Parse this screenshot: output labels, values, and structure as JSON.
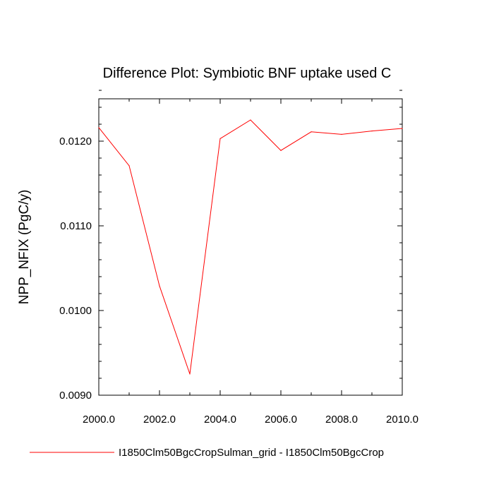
{
  "chart_data": {
    "type": "line",
    "title": "Difference Plot: Symbiotic BNF uptake used C",
    "xlabel": "",
    "ylabel": "NPP_NFIX  (PgC/y)",
    "xlim": [
      2000,
      2010
    ],
    "ylim": [
      0.009,
      0.0125
    ],
    "x_ticks": [
      2000,
      2002,
      2004,
      2006,
      2008,
      2010
    ],
    "x_tick_labels": [
      "2000.0",
      "2002.0",
      "2004.0",
      "2006.0",
      "2008.0",
      "2010.0"
    ],
    "x_minor_step": 1,
    "y_ticks": [
      0.009,
      0.01,
      0.011,
      0.012
    ],
    "y_tick_labels": [
      "0.0090",
      "0.0100",
      "0.0110",
      "0.0120"
    ],
    "y_minor_step": 0.0002,
    "grid": false,
    "legend_position": "bottom",
    "series": [
      {
        "name": "I1850Clm50BgcCropSulman_grid - I1850Clm50BgcCrop",
        "color": "#ff0000",
        "x": [
          2000,
          2001,
          2002,
          2003,
          2004,
          2005,
          2006,
          2007,
          2008,
          2009,
          2010
        ],
        "y": [
          0.01216,
          0.01171,
          0.01029,
          0.00925,
          0.01203,
          0.01225,
          0.01189,
          0.01211,
          0.01208,
          0.01212,
          0.01215
        ]
      }
    ]
  }
}
